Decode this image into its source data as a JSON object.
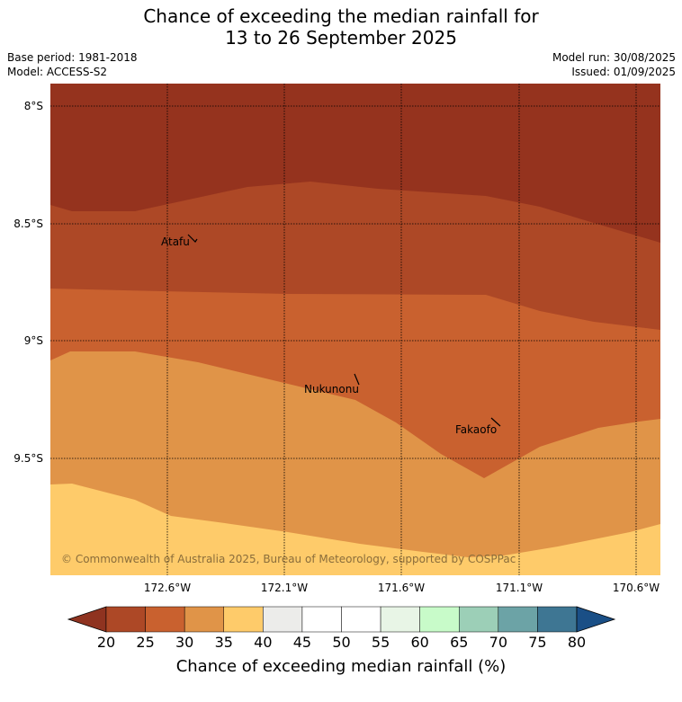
{
  "title_line1": "Chance of exceeding the median rainfall for",
  "title_line2": "13 to 26 September 2025",
  "base_period": "Base period: 1981-2018",
  "model": "Model: ACCESS-S2",
  "model_run": "Model run: 30/08/2025",
  "issued": "Issued: 01/09/2025",
  "map": {
    "lat_labels": [
      "8°S",
      "8.5°S",
      "9°S",
      "9.5°S"
    ],
    "lon_labels": [
      "172.6°W",
      "172.1°W",
      "171.6°W",
      "171.1°W",
      "170.6°W"
    ],
    "places": [
      {
        "name": "Atafu"
      },
      {
        "name": "Nukunonu"
      },
      {
        "name": "Fakaofo"
      }
    ],
    "copyright": "© Commonwealth of Australia 2025, Bureau of Meteorology, supported by COSPPac"
  },
  "colorbar": {
    "ticks": [
      "20",
      "25",
      "30",
      "35",
      "40",
      "45",
      "50",
      "55",
      "60",
      "65",
      "70",
      "75",
      "80"
    ],
    "colors": [
      "#ad4826",
      "#c9612f",
      "#e09448",
      "#fecb6a",
      "#ececea",
      "#ffffff",
      "#ffffff",
      "#e8f5e6",
      "#c8fbc9",
      "#9ccfb7",
      "#6ca3a6",
      "#3e7693"
    ],
    "low_color": "#8f3320",
    "high_color": "#1a4f86",
    "title": "Chance of exceeding median rainfall (%)"
  },
  "zone_colors": {
    "lt20": "#95331e",
    "p20_25": "#ad4826",
    "p25_30": "#c9612f",
    "p30_35": "#e09448",
    "p35_40": "#fecb6a"
  }
}
